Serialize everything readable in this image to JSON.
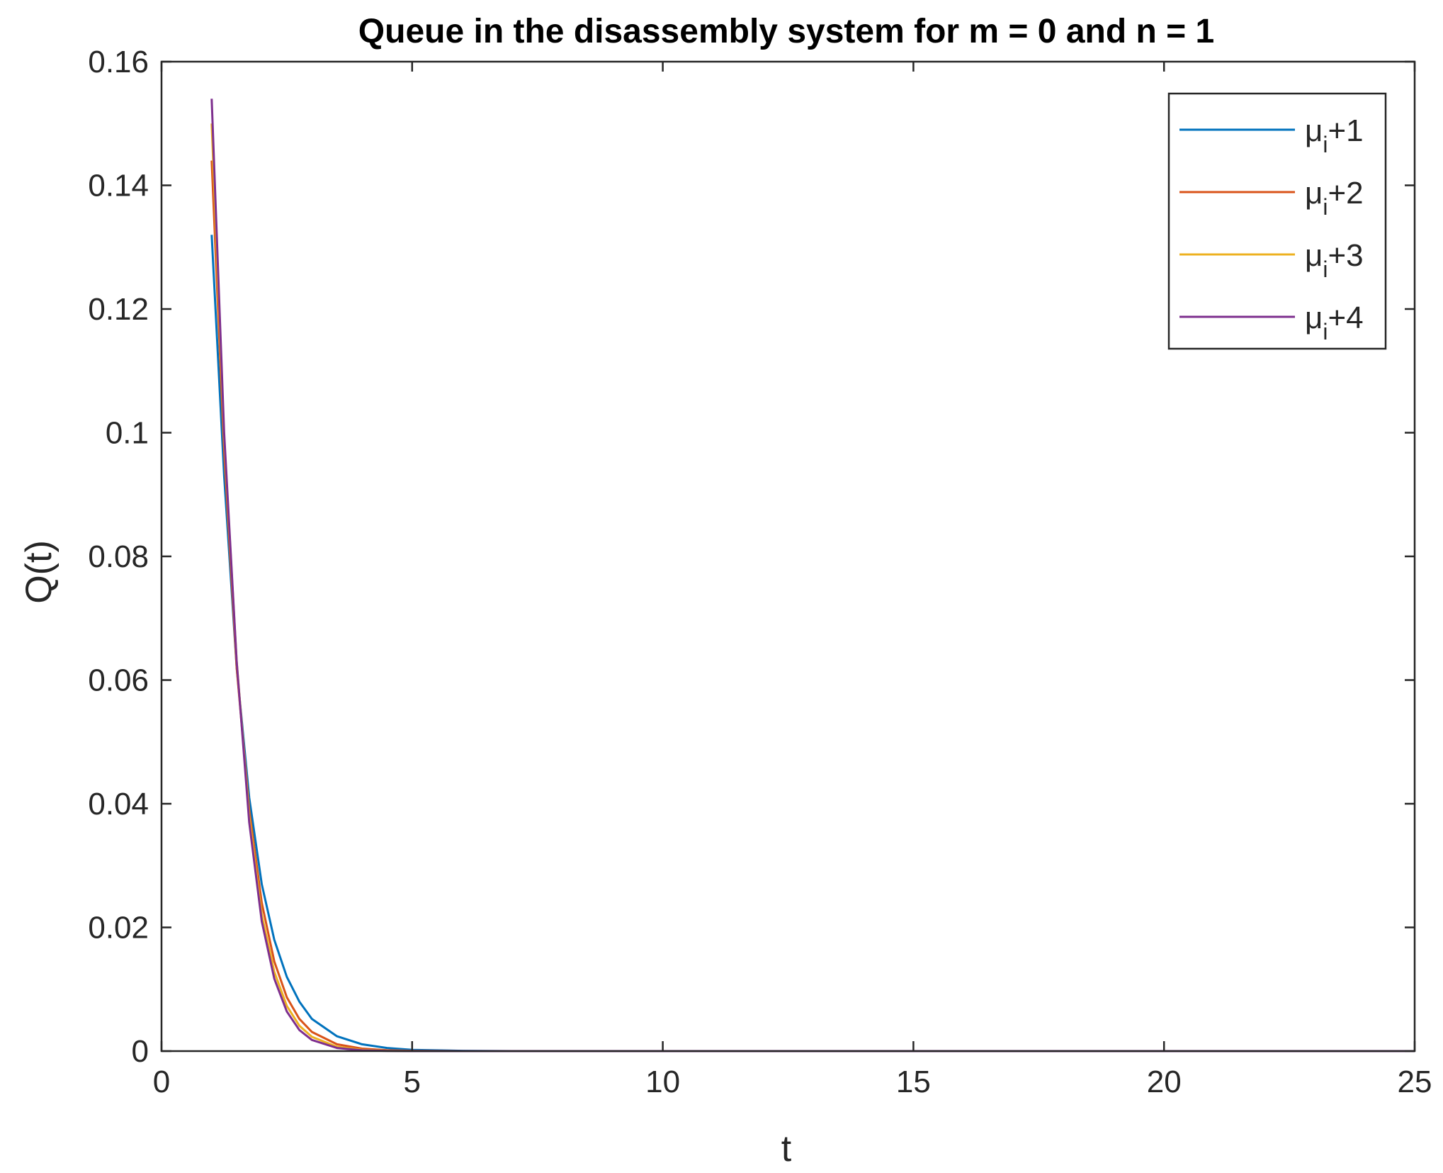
{
  "chart_data": {
    "type": "line",
    "title": "Queue in the disassembly system for m = 0 and n = 1",
    "xlabel": "t",
    "ylabel": "Q(t)",
    "xlim": [
      0,
      25
    ],
    "ylim": [
      0,
      0.16
    ],
    "xticks": [
      0,
      5,
      10,
      15,
      20,
      25
    ],
    "xtick_labels": [
      "0",
      "5",
      "10",
      "15",
      "20",
      "25"
    ],
    "yticks": [
      0,
      0.02,
      0.04,
      0.06,
      0.08,
      0.1,
      0.12,
      0.14,
      0.16
    ],
    "ytick_labels": [
      "0",
      "0.02",
      "0.04",
      "0.06",
      "0.08",
      "0.1",
      "0.12",
      "0.14",
      "0.16"
    ],
    "grid": false,
    "box": true,
    "legend_position": "top-right",
    "series": [
      {
        "name": "μi+1",
        "legend_base": "μ",
        "legend_sub": "i",
        "legend_suffix": "+1",
        "color": "#0072BD",
        "x": [
          1.0,
          1.25,
          1.5,
          1.75,
          2.0,
          2.25,
          2.5,
          2.75,
          3.0,
          3.5,
          4.0,
          4.5,
          5.0,
          6.0,
          7.0,
          10.0,
          15.0,
          20.0,
          25.0
        ],
        "y": [
          0.132,
          0.093,
          0.062,
          0.041,
          0.027,
          0.018,
          0.012,
          0.008,
          0.0052,
          0.0024,
          0.0011,
          0.0005,
          0.0002,
          5e-05,
          0.0,
          0.0,
          0.0,
          0.0,
          0.0
        ]
      },
      {
        "name": "μi+2",
        "legend_base": "μ",
        "legend_sub": "i",
        "legend_suffix": "+2",
        "color": "#D95319",
        "x": [
          1.0,
          1.25,
          1.5,
          1.75,
          2.0,
          2.25,
          2.5,
          2.75,
          3.0,
          3.5,
          4.0,
          4.5,
          5.0,
          6.0,
          7.0,
          10.0,
          15.0,
          20.0,
          25.0
        ],
        "y": [
          0.144,
          0.097,
          0.062,
          0.039,
          0.024,
          0.0145,
          0.0087,
          0.0052,
          0.0031,
          0.0011,
          0.0004,
          0.00015,
          5e-05,
          0.0,
          0.0,
          0.0,
          0.0,
          0.0,
          0.0
        ]
      },
      {
        "name": "μi+3",
        "legend_base": "μ",
        "legend_sub": "i",
        "legend_suffix": "+3",
        "color": "#EDB120",
        "x": [
          1.0,
          1.25,
          1.5,
          1.75,
          2.0,
          2.25,
          2.5,
          2.75,
          3.0,
          3.5,
          4.0,
          4.5,
          5.0,
          6.0,
          7.0,
          10.0,
          15.0,
          20.0,
          25.0
        ],
        "y": [
          0.15,
          0.099,
          0.063,
          0.038,
          0.022,
          0.0128,
          0.0073,
          0.0041,
          0.0023,
          0.0007,
          0.0002,
          6e-05,
          0.0,
          0.0,
          0.0,
          0.0,
          0.0,
          0.0,
          0.0
        ]
      },
      {
        "name": "μi+4",
        "legend_base": "μ",
        "legend_sub": "i",
        "legend_suffix": "+4",
        "color": "#7E2F8E",
        "x": [
          1.0,
          1.25,
          1.5,
          1.75,
          2.0,
          2.25,
          2.5,
          2.75,
          3.0,
          3.5,
          4.0,
          4.5,
          5.0,
          6.0,
          7.0,
          10.0,
          15.0,
          20.0,
          25.0
        ],
        "y": [
          0.154,
          0.1,
          0.063,
          0.037,
          0.021,
          0.0117,
          0.0064,
          0.0034,
          0.0018,
          0.0005,
          0.00013,
          3e-05,
          0.0,
          0.0,
          0.0,
          0.0,
          0.0,
          0.0,
          0.0
        ]
      }
    ]
  }
}
